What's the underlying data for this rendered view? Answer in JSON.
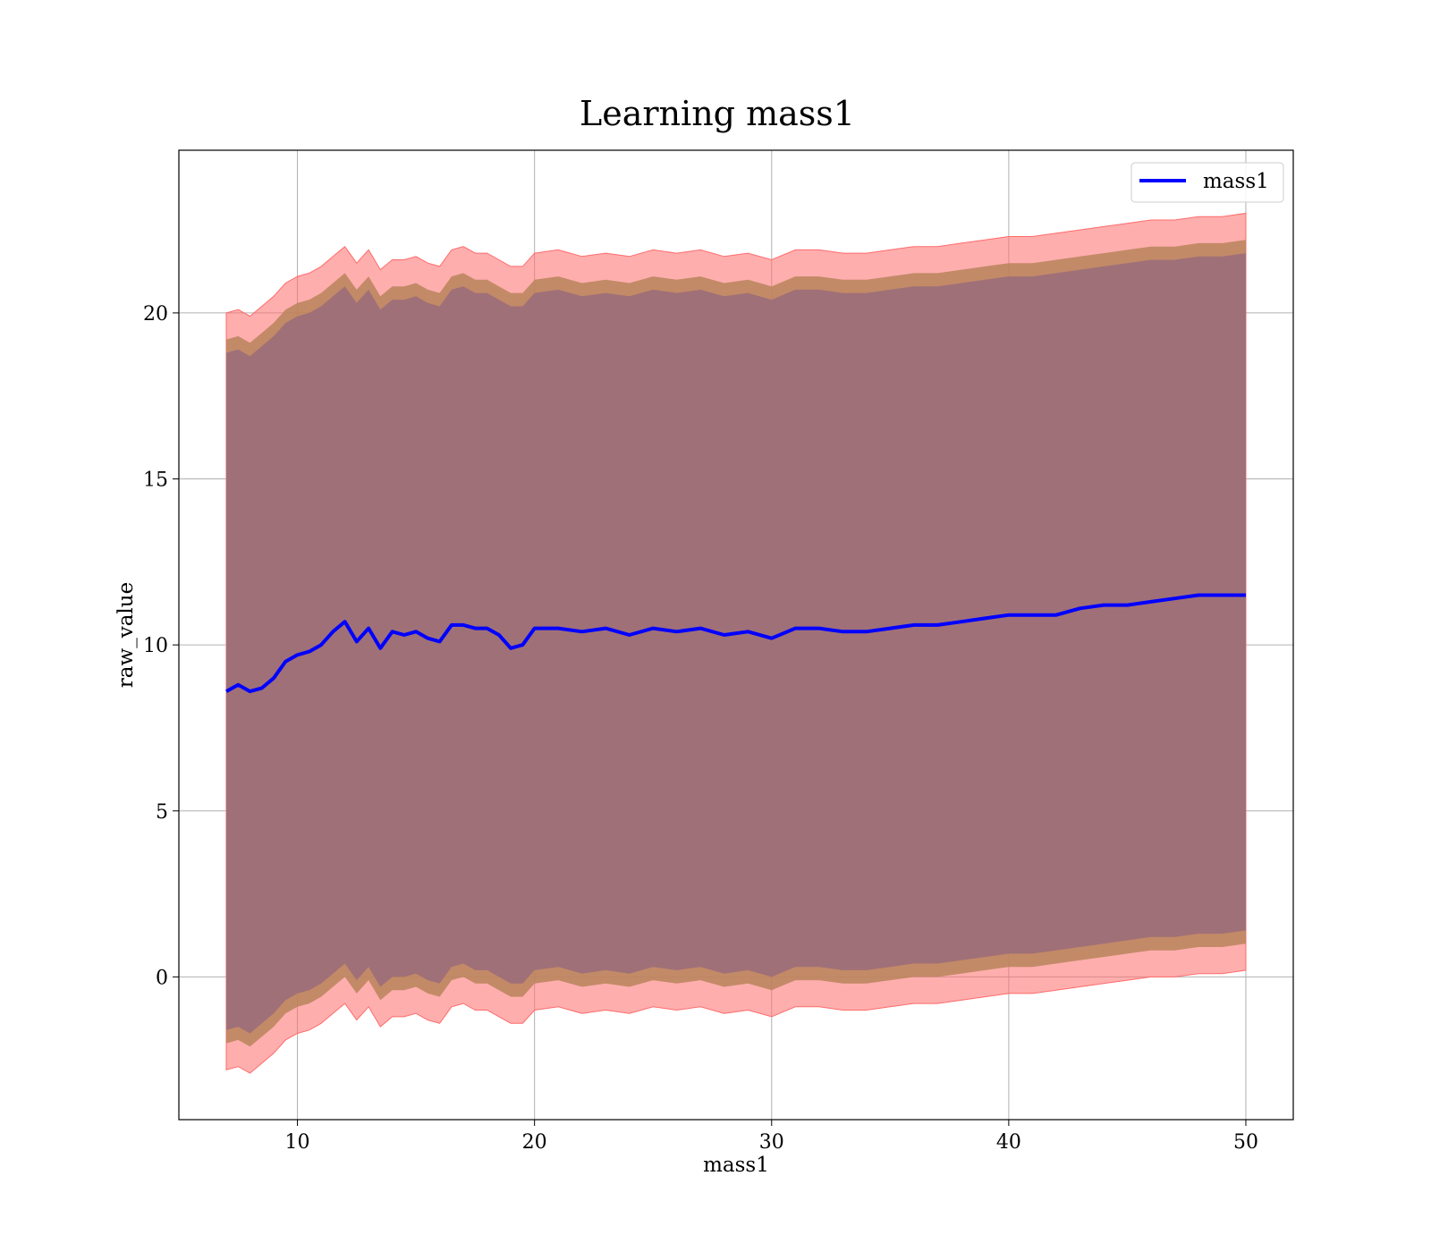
{
  "chart_data": {
    "type": "line",
    "title": "Learning mass1",
    "xlabel": "mass1",
    "ylabel": "raw_value",
    "xlim": [
      5,
      52
    ],
    "ylim": [
      -4.3,
      24.9
    ],
    "xticks": [
      10,
      20,
      30,
      40,
      50
    ],
    "yticks": [
      0,
      5,
      10,
      15,
      20
    ],
    "grid": true,
    "legend": {
      "placement": "top-right",
      "entries": [
        "mass1"
      ]
    },
    "colors": {
      "line": "#0000ff",
      "band_outer": "#ff6b6b",
      "band_middle": "#b8845a",
      "band_inner": "#a07078"
    },
    "series": [
      {
        "name": "mass1",
        "x": [
          7,
          7.5,
          8,
          8.5,
          9,
          9.5,
          10,
          10.5,
          11,
          11.5,
          12,
          12.5,
          13,
          13.5,
          14,
          14.5,
          15,
          15.5,
          16,
          16.5,
          17,
          17.5,
          18,
          18.5,
          19,
          19.5,
          20,
          21,
          22,
          23,
          24,
          25,
          26,
          27,
          28,
          29,
          30,
          31,
          32,
          33,
          34,
          35,
          36,
          37,
          38,
          39,
          40,
          41,
          42,
          43,
          44,
          45,
          46,
          47,
          48,
          49,
          50
        ],
        "y": [
          8.6,
          8.8,
          8.6,
          8.7,
          9.0,
          9.5,
          9.7,
          9.8,
          10.0,
          10.4,
          10.7,
          10.1,
          10.5,
          9.9,
          10.4,
          10.3,
          10.4,
          10.2,
          10.1,
          10.6,
          10.6,
          10.5,
          10.5,
          10.3,
          9.9,
          10.0,
          10.5,
          10.5,
          10.4,
          10.5,
          10.3,
          10.5,
          10.4,
          10.5,
          10.3,
          10.4,
          10.2,
          10.5,
          10.5,
          10.4,
          10.4,
          10.5,
          10.6,
          10.6,
          10.7,
          10.8,
          10.9,
          10.9,
          10.9,
          11.1,
          11.2,
          11.2,
          11.3,
          11.4,
          11.5,
          11.5,
          11.5
        ],
        "band_outer_upper": [
          20.0,
          20.1,
          19.9,
          20.2,
          20.5,
          20.9,
          21.1,
          21.2,
          21.4,
          21.7,
          22.0,
          21.5,
          21.9,
          21.3,
          21.6,
          21.6,
          21.7,
          21.5,
          21.4,
          21.9,
          22.0,
          21.8,
          21.8,
          21.6,
          21.4,
          21.4,
          21.8,
          21.9,
          21.7,
          21.8,
          21.7,
          21.9,
          21.8,
          21.9,
          21.7,
          21.8,
          21.6,
          21.9,
          21.9,
          21.8,
          21.8,
          21.9,
          22.0,
          22.0,
          22.1,
          22.2,
          22.3,
          22.3,
          22.4,
          22.5,
          22.6,
          22.7,
          22.8,
          22.8,
          22.9,
          22.9,
          23.0
        ],
        "band_middle_upper": [
          19.2,
          19.3,
          19.1,
          19.4,
          19.7,
          20.1,
          20.3,
          20.4,
          20.6,
          20.9,
          21.2,
          20.7,
          21.1,
          20.5,
          20.8,
          20.8,
          20.9,
          20.7,
          20.6,
          21.1,
          21.2,
          21.0,
          21.0,
          20.8,
          20.6,
          20.6,
          21.0,
          21.1,
          20.9,
          21.0,
          20.9,
          21.1,
          21.0,
          21.1,
          20.9,
          21.0,
          20.8,
          21.1,
          21.1,
          21.0,
          21.0,
          21.1,
          21.2,
          21.2,
          21.3,
          21.4,
          21.5,
          21.5,
          21.6,
          21.7,
          21.8,
          21.9,
          22.0,
          22.0,
          22.1,
          22.1,
          22.2
        ],
        "band_inner_upper": [
          18.8,
          18.9,
          18.7,
          19.0,
          19.3,
          19.7,
          19.9,
          20.0,
          20.2,
          20.5,
          20.8,
          20.3,
          20.7,
          20.1,
          20.4,
          20.4,
          20.5,
          20.3,
          20.2,
          20.7,
          20.8,
          20.6,
          20.6,
          20.4,
          20.2,
          20.2,
          20.6,
          20.7,
          20.5,
          20.6,
          20.5,
          20.7,
          20.6,
          20.7,
          20.5,
          20.6,
          20.4,
          20.7,
          20.7,
          20.6,
          20.6,
          20.7,
          20.8,
          20.8,
          20.9,
          21.0,
          21.1,
          21.1,
          21.2,
          21.3,
          21.4,
          21.5,
          21.6,
          21.6,
          21.7,
          21.7,
          21.8
        ],
        "band_inner_lower": [
          -1.6,
          -1.5,
          -1.7,
          -1.4,
          -1.1,
          -0.7,
          -0.5,
          -0.4,
          -0.2,
          0.1,
          0.4,
          -0.1,
          0.3,
          -0.3,
          0.0,
          0.0,
          0.1,
          -0.1,
          -0.2,
          0.3,
          0.4,
          0.2,
          0.2,
          0.0,
          -0.2,
          -0.2,
          0.2,
          0.3,
          0.1,
          0.2,
          0.1,
          0.3,
          0.2,
          0.3,
          0.1,
          0.2,
          0.0,
          0.3,
          0.3,
          0.2,
          0.2,
          0.3,
          0.4,
          0.4,
          0.5,
          0.6,
          0.7,
          0.7,
          0.8,
          0.9,
          1.0,
          1.1,
          1.2,
          1.2,
          1.3,
          1.3,
          1.4
        ],
        "band_middle_lower": [
          -2.0,
          -1.9,
          -2.1,
          -1.8,
          -1.5,
          -1.1,
          -0.9,
          -0.8,
          -0.6,
          -0.3,
          0.0,
          -0.5,
          -0.1,
          -0.7,
          -0.4,
          -0.4,
          -0.3,
          -0.5,
          -0.6,
          -0.1,
          0.0,
          -0.2,
          -0.2,
          -0.4,
          -0.6,
          -0.6,
          -0.2,
          -0.1,
          -0.3,
          -0.2,
          -0.3,
          -0.1,
          -0.2,
          -0.1,
          -0.3,
          -0.2,
          -0.4,
          -0.1,
          -0.1,
          -0.2,
          -0.2,
          -0.1,
          0.0,
          0.0,
          0.1,
          0.2,
          0.3,
          0.3,
          0.4,
          0.5,
          0.6,
          0.7,
          0.8,
          0.8,
          0.9,
          0.9,
          1.0
        ],
        "band_outer_lower": [
          -2.8,
          -2.7,
          -2.9,
          -2.6,
          -2.3,
          -1.9,
          -1.7,
          -1.6,
          -1.4,
          -1.1,
          -0.8,
          -1.3,
          -0.9,
          -1.5,
          -1.2,
          -1.2,
          -1.1,
          -1.3,
          -1.4,
          -0.9,
          -0.8,
          -1.0,
          -1.0,
          -1.2,
          -1.4,
          -1.4,
          -1.0,
          -0.9,
          -1.1,
          -1.0,
          -1.1,
          -0.9,
          -1.0,
          -0.9,
          -1.1,
          -1.0,
          -1.2,
          -0.9,
          -0.9,
          -1.0,
          -1.0,
          -0.9,
          -0.8,
          -0.8,
          -0.7,
          -0.6,
          -0.5,
          -0.5,
          -0.4,
          -0.3,
          -0.2,
          -0.1,
          0.0,
          0.0,
          0.1,
          0.1,
          0.2
        ]
      }
    ]
  }
}
